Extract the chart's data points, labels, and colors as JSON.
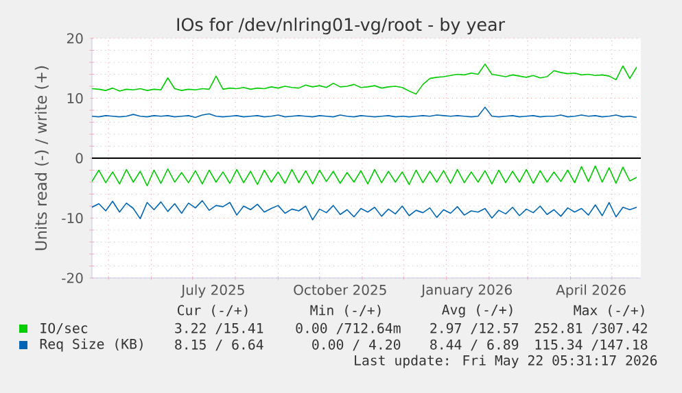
{
  "chart_data": {
    "type": "line",
    "title": "IOs for /dev/nlring01-vg/root - by year",
    "ylabel": "Units read (-) / write (+)",
    "xlim": [
      "2025-04-19",
      "2026-05-22"
    ],
    "ylim": [
      -20,
      20
    ],
    "yticks": [
      -20,
      -10,
      0,
      10,
      20
    ],
    "xticks": [
      {
        "value": "2025-05-01",
        "label": null
      },
      {
        "value": "2025-06-01",
        "label": null
      },
      {
        "value": "2025-07-01",
        "label": null
      },
      {
        "value": "2025-07-16",
        "label": "July 2025"
      },
      {
        "value": "2025-08-01",
        "label": null
      },
      {
        "value": "2025-09-01",
        "label": null
      },
      {
        "value": "2025-10-01",
        "label": null
      },
      {
        "value": "2025-10-16",
        "label": "October 2025"
      },
      {
        "value": "2025-11-01",
        "label": null
      },
      {
        "value": "2025-12-01",
        "label": null
      },
      {
        "value": "2026-01-01",
        "label": null
      },
      {
        "value": "2026-01-16",
        "label": "January 2026"
      },
      {
        "value": "2026-02-01",
        "label": null
      },
      {
        "value": "2026-03-01",
        "label": null
      },
      {
        "value": "2026-04-01",
        "label": null
      },
      {
        "value": "2026-04-16",
        "label": "April 2026"
      },
      {
        "value": "2026-05-01",
        "label": null
      }
    ],
    "grid": true,
    "legend": "bottom",
    "ref_lines": [
      {
        "axis": "y",
        "value": 0,
        "color": "#000000"
      }
    ],
    "x": [
      "2025-04-19",
      "2025-04-24",
      "2025-04-29",
      "2025-05-04",
      "2025-05-09",
      "2025-05-14",
      "2025-05-19",
      "2025-05-24",
      "2025-05-29",
      "2025-06-03",
      "2025-06-08",
      "2025-06-13",
      "2025-06-18",
      "2025-06-23",
      "2025-06-28",
      "2025-07-03",
      "2025-07-08",
      "2025-07-13",
      "2025-07-18",
      "2025-07-23",
      "2025-07-28",
      "2025-08-02",
      "2025-08-07",
      "2025-08-12",
      "2025-08-17",
      "2025-08-22",
      "2025-08-27",
      "2025-09-01",
      "2025-09-06",
      "2025-09-11",
      "2025-09-16",
      "2025-09-21",
      "2025-09-26",
      "2025-10-01",
      "2025-10-06",
      "2025-10-11",
      "2025-10-16",
      "2025-10-21",
      "2025-10-26",
      "2025-10-31",
      "2025-11-05",
      "2025-11-10",
      "2025-11-15",
      "2025-11-20",
      "2025-11-25",
      "2025-11-30",
      "2025-12-05",
      "2025-12-10",
      "2025-12-15",
      "2025-12-20",
      "2025-12-25",
      "2025-12-30",
      "2026-01-04",
      "2026-01-09",
      "2026-01-14",
      "2026-01-19",
      "2026-01-24",
      "2026-01-29",
      "2026-02-03",
      "2026-02-08",
      "2026-02-13",
      "2026-02-18",
      "2026-02-23",
      "2026-02-28",
      "2026-03-05",
      "2026-03-10",
      "2026-03-15",
      "2026-03-20",
      "2026-03-25",
      "2026-03-30",
      "2026-04-04",
      "2026-04-09",
      "2026-04-14",
      "2026-04-19",
      "2026-04-24",
      "2026-04-29",
      "2026-05-04",
      "2026-05-09",
      "2026-05-14",
      "2026-05-19"
    ],
    "series": [
      {
        "name": "IO/sec",
        "color": "#00cc00",
        "values": [
          11.6,
          11.5,
          11.3,
          11.7,
          11.2,
          11.5,
          11.4,
          11.6,
          11.3,
          11.5,
          11.4,
          13.4,
          11.6,
          11.3,
          11.5,
          11.4,
          11.6,
          11.5,
          13.7,
          11.5,
          11.7,
          11.6,
          11.8,
          11.5,
          11.7,
          11.6,
          11.9,
          11.7,
          12.0,
          11.8,
          11.7,
          12.2,
          11.9,
          12.1,
          11.8,
          12.5,
          11.9,
          12.0,
          12.3,
          11.8,
          11.9,
          12.1,
          11.7,
          11.9,
          12.0,
          11.8,
          11.2,
          10.7,
          12.3,
          13.3,
          13.5,
          13.6,
          13.8,
          14.0,
          13.9,
          14.2,
          14.0,
          15.7,
          14.0,
          13.8,
          13.6,
          13.9,
          13.7,
          13.5,
          13.8,
          13.4,
          13.6,
          14.6,
          14.3,
          14.1,
          14.2,
          13.9,
          14.0,
          13.8,
          13.9,
          13.7,
          13.1,
          15.4,
          13.3,
          15.2
        ]
      },
      {
        "color": "#00cc00",
        "values": [
          -3.9,
          -2.0,
          -4.1,
          -2.3,
          -4.3,
          -1.9,
          -4.0,
          -2.2,
          -4.6,
          -2.0,
          -4.2,
          -1.8,
          -4.0,
          -2.4,
          -4.1,
          -2.1,
          -4.3,
          -2.0,
          -4.0,
          -2.3,
          -4.2,
          -1.9,
          -4.1,
          -2.2,
          -4.4,
          -2.0,
          -4.0,
          -2.3,
          -4.2,
          -1.9,
          -4.1,
          -2.1,
          -4.3,
          -2.0,
          -3.9,
          -2.2,
          -4.2,
          -2.4,
          -4.0,
          -2.1,
          -4.3,
          -1.9,
          -4.1,
          -2.2,
          -4.0,
          -2.3,
          -4.4,
          -2.0,
          -4.1,
          -2.2,
          -4.0,
          -2.1,
          -4.2,
          -1.9,
          -4.1,
          -2.3,
          -4.0,
          -2.1,
          -4.3,
          -2.0,
          -4.1,
          -2.2,
          -4.0,
          -1.9,
          -4.2,
          -2.1,
          -4.0,
          -2.3,
          -3.9,
          -2.0,
          -4.1,
          -1.4,
          -3.9,
          -1.3,
          -4.0,
          -1.6,
          -4.2,
          -1.5,
          -3.8,
          -3.2
        ]
      },
      {
        "name": "Req Size (KB)",
        "color": "#0066b3",
        "values": [
          7.0,
          6.9,
          7.1,
          7.0,
          6.9,
          7.0,
          7.3,
          7.0,
          6.9,
          7.1,
          7.0,
          7.1,
          6.9,
          7.0,
          7.1,
          6.8,
          7.2,
          7.4,
          7.0,
          6.9,
          7.0,
          7.1,
          6.9,
          7.0,
          7.1,
          6.9,
          7.0,
          7.2,
          6.9,
          7.0,
          7.1,
          7.0,
          6.9,
          7.1,
          7.0,
          6.9,
          7.2,
          7.0,
          6.9,
          7.1,
          7.0,
          6.9,
          7.0,
          7.1,
          6.9,
          7.0,
          6.9,
          7.0,
          7.1,
          7.0,
          7.2,
          7.1,
          7.0,
          7.1,
          7.0,
          6.9,
          7.0,
          8.5,
          7.0,
          6.9,
          7.0,
          7.1,
          6.9,
          7.0,
          7.1,
          6.9,
          7.0,
          7.0,
          7.2,
          6.9,
          7.0,
          7.2,
          7.0,
          7.1,
          6.9,
          7.0,
          7.2,
          6.9,
          7.0,
          6.8
        ]
      },
      {
        "color": "#0066b3",
        "values": [
          -8.2,
          -7.6,
          -8.8,
          -7.2,
          -9.0,
          -7.5,
          -8.4,
          -10.1,
          -7.4,
          -8.6,
          -7.3,
          -8.9,
          -7.6,
          -9.2,
          -7.5,
          -8.3,
          -7.1,
          -8.7,
          -7.9,
          -8.1,
          -7.4,
          -9.5,
          -8.0,
          -8.6,
          -7.7,
          -9.0,
          -8.4,
          -7.9,
          -9.2,
          -8.5,
          -8.8,
          -8.0,
          -10.3,
          -8.5,
          -9.1,
          -7.9,
          -9.4,
          -8.6,
          -9.8,
          -8.4,
          -9.0,
          -8.2,
          -9.7,
          -8.5,
          -9.3,
          -8.0,
          -9.6,
          -8.7,
          -9.1,
          -8.3,
          -9.9,
          -8.6,
          -9.2,
          -8.1,
          -9.5,
          -8.8,
          -9.0,
          -8.4,
          -10.0,
          -8.7,
          -9.3,
          -8.2,
          -9.6,
          -8.5,
          -9.1,
          -8.0,
          -9.4,
          -8.6,
          -9.7,
          -8.3,
          -9.0,
          -8.4,
          -9.5,
          -7.8,
          -9.6,
          -7.4,
          -9.8,
          -8.2,
          -8.6,
          -8.2
        ]
      }
    ],
    "annotations": [
      "Cur (-/+)",
      "Min (-/+)",
      "Avg (-/+)",
      "Max (-/+)",
      "3.22 /15.41",
      "0.00 /712.64m",
      "2.97 /12.57",
      "252.81 /307.42",
      "8.15 / 6.64",
      "0.00 / 4.20",
      "8.44 / 6.89",
      "115.34 /147.18",
      "Last update: Fri May 22 05:31:17 2026"
    ]
  }
}
